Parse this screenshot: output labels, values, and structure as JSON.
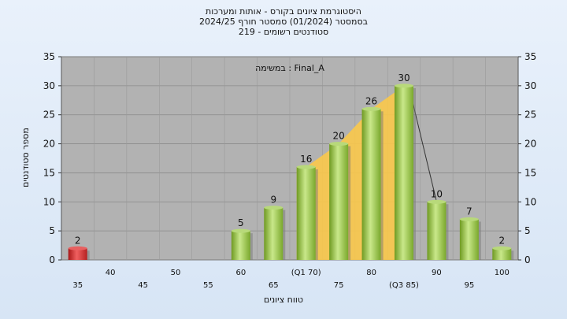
{
  "title": {
    "line1": "היסטוגרמת ציונים בקורס - אותות ומערכות",
    "line2": "בסמסטר  (01/2024)  סמסטר חורף 2024/25",
    "line3": "סטודנטים רשומים - 219"
  },
  "annotation": "במשימה : Final_A",
  "chart_data": {
    "type": "bar",
    "title": "היסטוגרמת ציונים בקורס - אותות ומערכות",
    "xlabel": "טווח ציונים",
    "ylabel": "מספר סטודנטים",
    "ylim": [
      0,
      35
    ],
    "yticks": [
      0,
      5,
      10,
      15,
      20,
      25,
      30,
      35
    ],
    "grid": true,
    "categories": [
      "35",
      "40",
      "45",
      "50",
      "55",
      "60",
      "65",
      "(Q1 70)",
      "75",
      "80",
      "(Q3 85)",
      "90",
      "95",
      "100"
    ],
    "values": [
      2,
      0,
      0,
      0,
      0,
      5,
      9,
      16,
      20,
      26,
      30,
      10,
      7,
      2
    ],
    "value_labels": [
      "2",
      "",
      "",
      "",
      "",
      "5",
      "9",
      "16",
      "20",
      "26",
      "30",
      "10",
      "7",
      "2"
    ],
    "bar_colors": [
      "#d42a2a",
      "#8fbf3a",
      "#8fbf3a",
      "#8fbf3a",
      "#8fbf3a",
      "#8fbf3a",
      "#8fbf3a",
      "#8fbf3a",
      "#8fbf3a",
      "#8fbf3a",
      "#8fbf3a",
      "#8fbf3a",
      "#8fbf3a",
      "#8fbf3a"
    ],
    "iqr_band": {
      "from_category": "(Q1 70)",
      "to_category": "(Q3 85)",
      "color": "#f9c84a"
    },
    "plot_background": "#b2b2b2"
  }
}
